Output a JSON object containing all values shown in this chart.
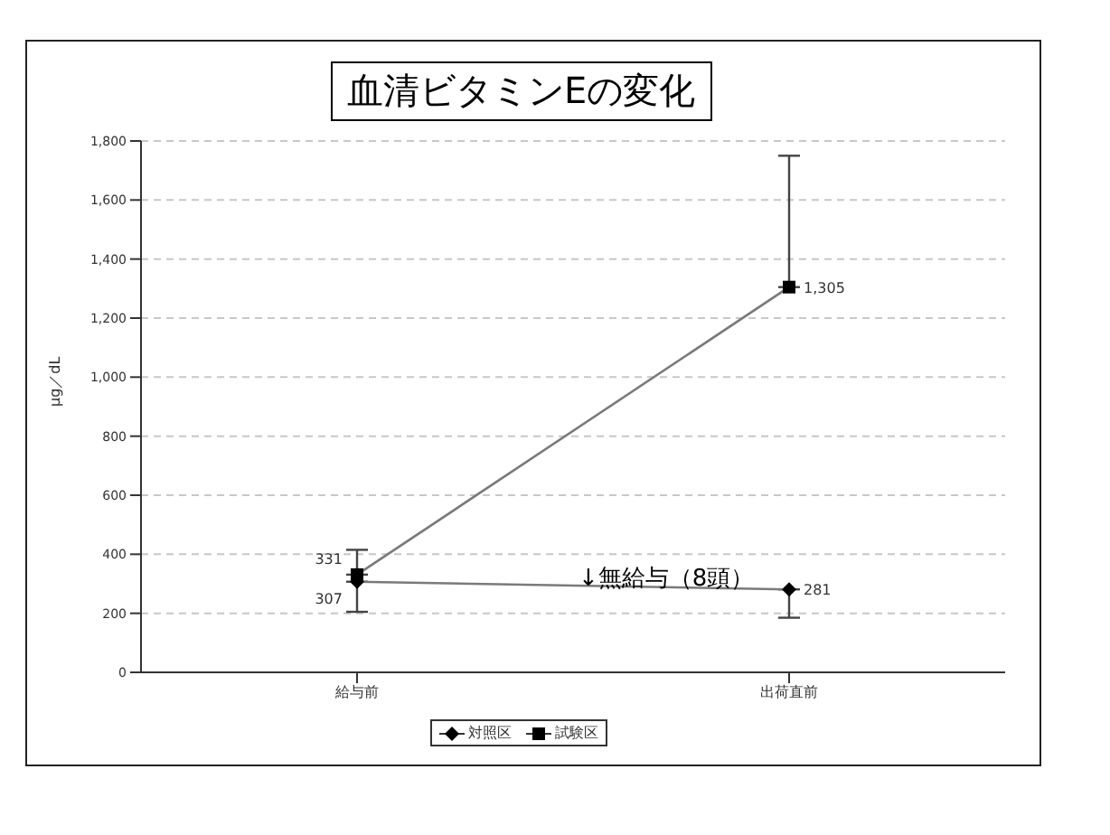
{
  "chart_data": {
    "type": "line",
    "title": "血清ビタミンEの変化",
    "ylabel": "μg／dL",
    "categories": [
      "給与前",
      "出荷直前"
    ],
    "series": [
      {
        "name": "対照区",
        "color": "#000000",
        "marker": "diamond",
        "values": [
          307,
          281
        ],
        "value_labels": [
          "307",
          "281"
        ],
        "errors": [
          [
            205,
            307
          ],
          [
            185,
            281
          ]
        ]
      },
      {
        "name": "試験区",
        "color": "#000000",
        "marker": "square",
        "values": [
          331,
          1305
        ],
        "value_labels": [
          "331",
          "1,305"
        ],
        "errors": [
          [
            331,
            415
          ],
          [
            1305,
            1750
          ]
        ]
      }
    ],
    "ylim": [
      0,
      1800
    ],
    "yticks": [
      0,
      200,
      400,
      600,
      800,
      {
        "value": 1000,
        "label": "1,000"
      },
      {
        "value": 1200,
        "label": "1,200"
      },
      {
        "value": 1400,
        "label": "1,400"
      },
      {
        "value": 1600,
        "label": "1,600"
      },
      {
        "value": 1800,
        "label": "1,800"
      }
    ],
    "grid": "y",
    "legend": "bottom",
    "annotations": [
      "↓無給与（8頭）"
    ]
  }
}
